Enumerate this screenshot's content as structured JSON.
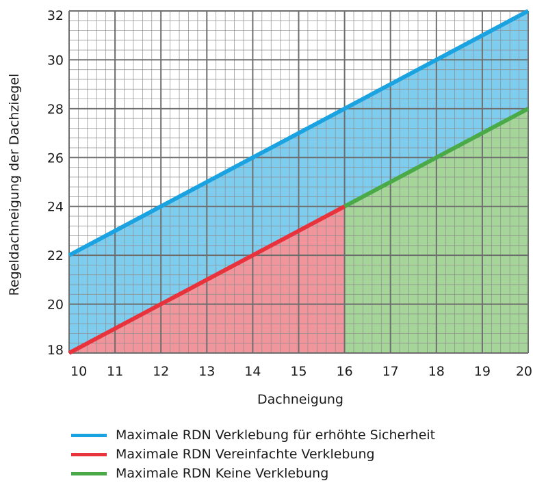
{
  "chart_data": {
    "type": "area",
    "title": "",
    "xlabel": "Dachneigung",
    "ylabel": "Regeldachneigung der Dachziegel",
    "xlim": [
      10,
      20
    ],
    "ylim": [
      18,
      32
    ],
    "x_ticks": [
      "10",
      "11",
      "12",
      "13",
      "14",
      "15",
      "16",
      "17",
      "18",
      "19",
      "20"
    ],
    "y_ticks": [
      "18",
      "20",
      "22",
      "24",
      "26",
      "28",
      "30",
      "32"
    ],
    "grid": true,
    "series": [
      {
        "name": "Maximale RDN Verklebung für erhöhte Sicherheit",
        "color": "#1aa3e0",
        "fill": "#7fcdee",
        "x": [
          10,
          20
        ],
        "y": [
          22,
          32
        ]
      },
      {
        "name": "Maximale RDN Vereinfachte Verklebung",
        "color": "#e8323c",
        "fill": "#f0959b",
        "x": [
          10,
          16
        ],
        "y": [
          18,
          24
        ]
      },
      {
        "name": "Maximale RDN Keine Verklebung",
        "color": "#4aaa48",
        "fill": "#a6d59a",
        "x": [
          16,
          20
        ],
        "y": [
          24,
          28
        ]
      }
    ]
  },
  "legend": {
    "items": [
      {
        "label": "Maximale RDN Verklebung für erhöhte Sicherheit",
        "color": "#1aa3e0"
      },
      {
        "label": "Maximale RDN Vereinfachte Verklebung",
        "color": "#e8323c"
      },
      {
        "label": "Maximale RDN Keine Verklebung",
        "color": "#4aaa48"
      }
    ]
  }
}
